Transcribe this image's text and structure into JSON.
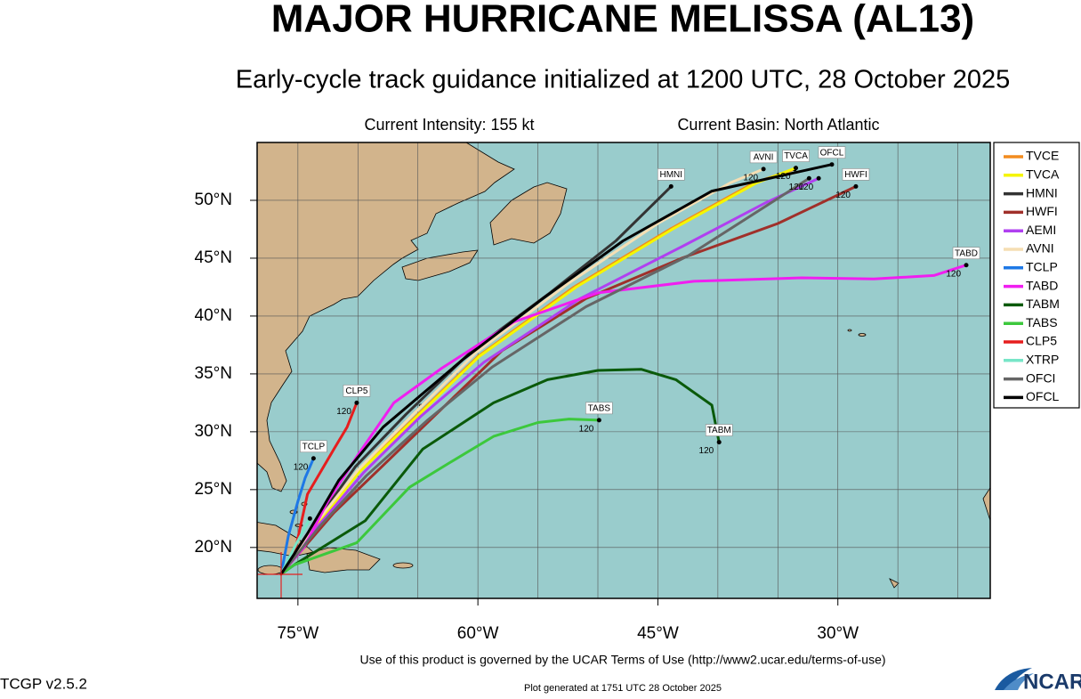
{
  "map": {
    "title": "MAJOR HURRICANE MELISSA (AL13)",
    "subtitle": "Early-cycle track guidance initialized at 1200 UTC, 28 October 2025",
    "intensity": "Current Intensity: 155 kt",
    "basin": "Current Basin: North Atlantic",
    "terms": "Use of this product is governed by the UCAR Terms of Use (http://www2.ucar.edu/terms-of-use)",
    "version": "TCGP v2.5.2",
    "generated": "Plot generated at 1751 UTC   28 October 2025",
    "logo": "NCAR",
    "xlim": [
      -78.4,
      -17.3
    ],
    "ylim": [
      15.6,
      55
    ],
    "xticks": [
      {
        "value": -75,
        "label": "75°W"
      },
      {
        "value": -60,
        "label": "60°W"
      },
      {
        "value": -45,
        "label": "45°W"
      },
      {
        "value": -30,
        "label": "30°W"
      }
    ],
    "yticks": [
      {
        "value": 20,
        "label": "20°N"
      },
      {
        "value": 25,
        "label": "25°N"
      },
      {
        "value": 30,
        "label": "30°N"
      },
      {
        "value": 35,
        "label": "35°N"
      },
      {
        "value": 40,
        "label": "40°N"
      },
      {
        "value": 45,
        "label": "45°N"
      },
      {
        "value": 50,
        "label": "50°N"
      }
    ],
    "xgrid": [
      -75,
      -70,
      -65,
      -60,
      -55,
      -50,
      -45,
      -40,
      -35,
      -30,
      -25,
      -20
    ],
    "ygrid": [
      20,
      25,
      30,
      35,
      40,
      45,
      50
    ],
    "tracks": [
      {
        "name": "TVCE",
        "color": "#f28c1e",
        "lon": [
          -76.4,
          -73.5,
          -70,
          -65,
          -60,
          -52,
          -44,
          -37,
          -33.6
        ],
        "lat": [
          17.7,
          22,
          26.5,
          31.5,
          36.5,
          42.5,
          47.5,
          51.5,
          52.7
        ],
        "tag": null,
        "end_label": null
      },
      {
        "name": "TVCA",
        "color": "#f5f500",
        "lon": [
          -76.4,
          -73.4,
          -69.9,
          -64.9,
          -59.9,
          -51.8,
          -43.8,
          -36.8,
          -33.5
        ],
        "lat": [
          17.7,
          22,
          26.5,
          31.5,
          36.5,
          42.5,
          47.5,
          51.5,
          52.8
        ],
        "tag": "TVCA",
        "end_label": "120"
      },
      {
        "name": "HMNI",
        "color": "#333333",
        "lon": [
          -76.4,
          -73.6,
          -70.2,
          -66,
          -60.5,
          -54,
          -48.5,
          -43.9
        ],
        "lat": [
          17.7,
          22,
          27,
          31.5,
          37,
          42,
          46.5,
          51.2
        ],
        "tag": "HMNI",
        "end_label": null
      },
      {
        "name": "HWFI",
        "color": "#a0302a",
        "lon": [
          -76.4,
          -72,
          -68,
          -63,
          -58,
          -51,
          -43,
          -35,
          -28.5
        ],
        "lat": [
          17.7,
          23,
          27,
          32,
          37,
          41.5,
          45,
          48,
          51.2
        ],
        "tag": "HWFI",
        "end_label": "120"
      },
      {
        "name": "AEMI",
        "color": "#b040f0",
        "lon": [
          -76.4,
          -73.2,
          -69.5,
          -64.8,
          -59.5,
          -51.5,
          -43,
          -36,
          -31.6
        ],
        "lat": [
          17.7,
          22,
          26.5,
          31.3,
          36,
          41.5,
          46,
          49.8,
          51.9
        ],
        "tag": null,
        "end_label": "120"
      },
      {
        "name": "AVNI",
        "color": "#f5deb3",
        "lon": [
          -76.4,
          -73.5,
          -70,
          -65.2,
          -60.2,
          -52.5,
          -45,
          -39,
          -36.2
        ],
        "lat": [
          17.7,
          22.1,
          26.7,
          31.7,
          36.8,
          42.8,
          48,
          51.5,
          52.7
        ],
        "tag": "AVNI",
        "end_label": "120"
      },
      {
        "name": "TCLP",
        "color": "#1e78e6",
        "lon": [
          -76.4,
          -75.8,
          -75,
          -74.4,
          -73.7
        ],
        "lat": [
          17.7,
          21,
          24,
          26,
          27.7
        ],
        "tag": "TCLP",
        "end_label": "120"
      },
      {
        "name": "TABD",
        "color": "#f01ef0",
        "lon": [
          -76.4,
          -74.5,
          -72.5,
          -70,
          -67,
          -63,
          -57,
          -50,
          -42,
          -33,
          -27,
          -22,
          -19.3
        ],
        "lat": [
          17.7,
          20,
          24,
          28,
          32.5,
          35.5,
          39.5,
          42,
          43,
          43.3,
          43.2,
          43.5,
          44.4
        ],
        "tag": "TABD",
        "end_label": "120"
      },
      {
        "name": "TABM",
        "color": "#0a5a0a",
        "lon": [
          -76.4,
          -75.3,
          -69.4,
          -64.6,
          -58.7,
          -54.2,
          -50,
          -46.4,
          -43.5,
          -40.5,
          -39.9
        ],
        "lat": [
          17.7,
          18.5,
          22.3,
          28.5,
          32.5,
          34.5,
          35.3,
          35.4,
          34.5,
          32.3,
          29.1
        ],
        "tag": "TABM",
        "end_label": "120"
      },
      {
        "name": "TABS",
        "color": "#3cc83c",
        "lon": [
          -76.4,
          -75.3,
          -70.1,
          -65.7,
          -62.4,
          -58.7,
          -55,
          -52.4,
          -49.9
        ],
        "lat": [
          17.7,
          18.5,
          20.4,
          25.2,
          27.3,
          29.6,
          30.8,
          31.1,
          31
        ],
        "tag": "TABS",
        "end_label": "120"
      },
      {
        "name": "CLP5",
        "color": "#e61e1e",
        "lon": [
          -76.4,
          -75.3,
          -74.2,
          -72,
          -70.9,
          -70.1
        ],
        "lat": [
          17.7,
          19.4,
          24.6,
          28.5,
          30.4,
          32.5
        ],
        "tag": "CLP5",
        "end_label": "120"
      },
      {
        "name": "XTRP",
        "color": "#78e6c8",
        "lon": [
          -76.4,
          -75.2,
          -74
        ],
        "lat": [
          17.7,
          20.2,
          22.5
        ],
        "tag": null,
        "end_label": null
      },
      {
        "name": "OFCI",
        "color": "#666666",
        "lon": [
          -76.4,
          -73.2,
          -69.3,
          -64.2,
          -58.8,
          -51,
          -42.5,
          -36,
          -32.4
        ],
        "lat": [
          17.7,
          21.8,
          26.2,
          31,
          35.6,
          40.8,
          45.2,
          49.5,
          51.9
        ],
        "tag": null,
        "end_label": "120"
      },
      {
        "name": "OFCL",
        "color": "#000000",
        "lon": [
          -76.4,
          -74.2,
          -71.6,
          -67.9,
          -61.3,
          -54.6,
          -47.9,
          -40.5,
          -30.5
        ],
        "lat": [
          17.7,
          21.2,
          25.8,
          30.4,
          36.2,
          41.5,
          46.5,
          50.8,
          53.1
        ],
        "tag": "OFCL",
        "end_label": null
      }
    ]
  }
}
